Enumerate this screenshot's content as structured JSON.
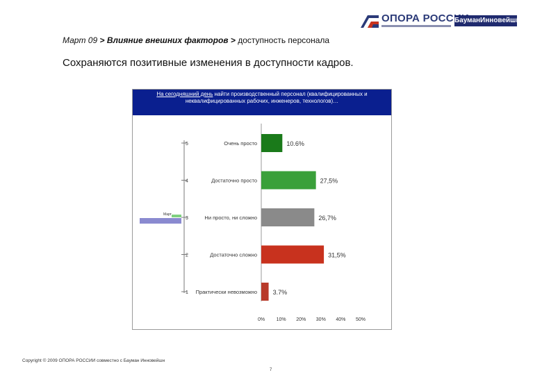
{
  "header": {
    "logo_opora": "ОПОРА РОССИИ",
    "logo_bauman": "БауманИнновейшн"
  },
  "breadcrumb": {
    "part1": "Март 09",
    "sep1": ">",
    "part2": "Влияние внешних факторов",
    "sep2": ">",
    "part3": "доступность персонала"
  },
  "headline": "Сохраняются позитивные изменения в доступности кадров.",
  "question": {
    "lead": "На сегодняшний день",
    "rest": " найти производственный персонал (квалифицированных и неквалифицированных рабочих, инженеров, технологов)…"
  },
  "colors": {
    "header_bg": "#0a1f8f",
    "bar_very_easy": "#1a7a1a",
    "bar_fairly_easy": "#3aa03a",
    "bar_neutral": "#8a8a8a",
    "bar_fairly_hard": "#c8321e",
    "bar_impossible": "#b83a2a"
  },
  "chart_data": {
    "type": "bar",
    "orientation": "horizontal",
    "scale": [
      "5",
      "4",
      "3",
      "2",
      "1"
    ],
    "categories": [
      "Очень просто",
      "Достаточно просто",
      "Ни просто, ни сложно",
      "Достаточно сложно",
      "Практически невозможно"
    ],
    "values": [
      10.6,
      27.5,
      26.7,
      31.5,
      3.7
    ],
    "value_labels": [
      "10.6%",
      "27,5%",
      "26,7%",
      "31,5%",
      "3.7%"
    ],
    "xticks": [
      "0%",
      "10%",
      "20%",
      "30%",
      "40%",
      "50%"
    ],
    "xlim": [
      0,
      50
    ],
    "side_marker": "Март"
  },
  "footer": {
    "copyright": "Copyright © 2009 ОПОРА РОССИИ совместно с Бауман Инновейшн",
    "page": "7"
  }
}
